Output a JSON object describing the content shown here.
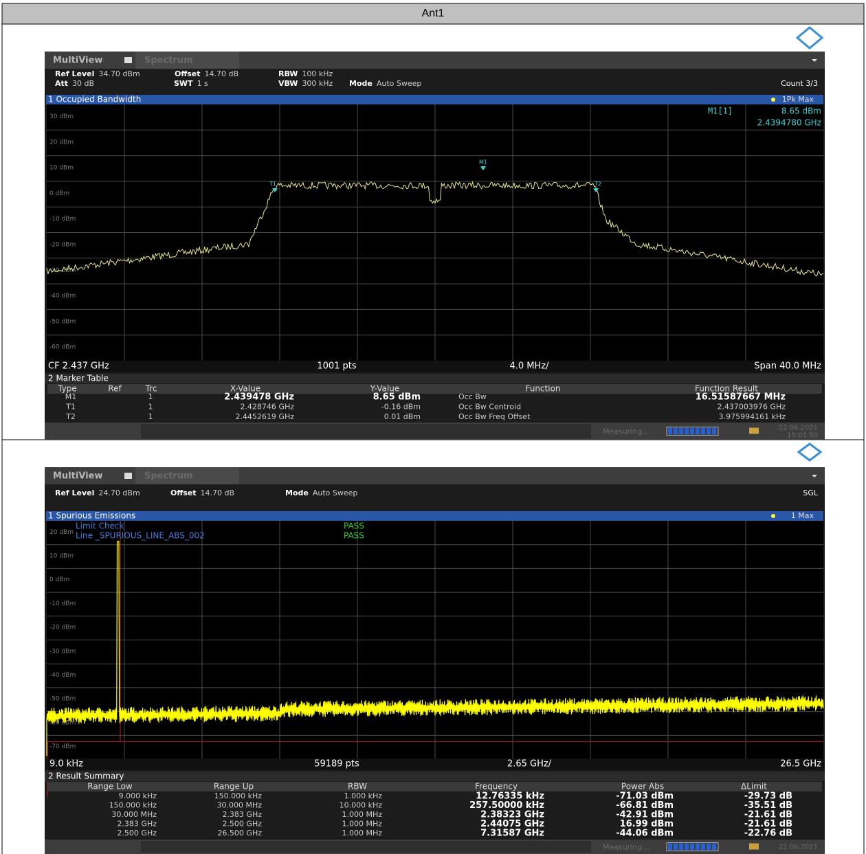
{
  "header": {
    "title": "Ant1"
  },
  "screens": [
    {
      "tabs": [
        "MultiView",
        "Spectrum"
      ],
      "settings": [
        [
          {
            "label": "Ref Level",
            "value": "34.70 dBm"
          },
          {
            "label": "Offset",
            "value": "14.70 dB"
          },
          {
            "label": "RBW",
            "value": "100 kHz"
          }
        ],
        [
          {
            "label": "Att",
            "value": "30 dB"
          },
          {
            "label": "SWT",
            "value": "1 s"
          },
          {
            "label": "VBW",
            "value": "300 kHz"
          },
          {
            "label": "Mode",
            "value": "Auto Sweep"
          }
        ]
      ],
      "status_right": "Count 3/3",
      "window_title": "1 Occupied Bandwidth",
      "trace_label": "1Pk Max",
      "marker_readout": {
        "name": "M1[1]",
        "level": "8.65 dBm",
        "freq": "2.4394780 GHz"
      },
      "y_labels": [
        "30 dBm",
        "20 dBm",
        "10 dBm",
        "0 dBm",
        "-10 dBm",
        "-20 dBm",
        "-30 dBm",
        "-40 dBm",
        "-50 dBm",
        "-60 dBm"
      ],
      "plot_markers": [
        "T1",
        "M1",
        "T2"
      ],
      "footer": [
        "CF 2.437 GHz",
        "1001 pts",
        "4.0 MHz/",
        "Span 40.0 MHz"
      ],
      "table_title": "2 Marker Table",
      "table": {
        "columns": [
          "Type",
          "Ref",
          "Trc",
          "X-Value",
          "Y-Value",
          "Function",
          "Function Result"
        ],
        "rows": [
          [
            "M1",
            null,
            "1",
            "2.439478 GHz",
            "8.65 dBm",
            "Occ Bw",
            "16.51587667 MHz"
          ],
          [
            "T1",
            null,
            "1",
            "2.428746 GHz",
            "-0.16 dBm",
            "Occ Bw Centroid",
            "2.437003976 GHz"
          ],
          [
            "T2",
            null,
            "1",
            "2.4452619 GHz",
            "0.01 dBm",
            "Occ Bw Freq Offset",
            "3.975994161 kHz"
          ]
        ]
      },
      "status": "Measuring...",
      "date": "22.06.2021",
      "time": "15:05:50"
    },
    {
      "tabs": [
        "MultiView",
        "Spectrum"
      ],
      "settings": [
        [
          {
            "label": "Ref Level",
            "value": "24.70 dBm"
          },
          {
            "label": "Offset",
            "value": "14.70 dB"
          },
          {
            "label": "Mode",
            "value": "Auto Sweep"
          }
        ]
      ],
      "status_right": "SGL",
      "window_title": "1 Spurious Emissions",
      "trace_label": "1 Max",
      "limit_check": [
        {
          "label": "Limit Check",
          "result": "PASS"
        },
        {
          "label": "Line _SPURIOUS_LINE_ABS_002",
          "result": "PASS"
        }
      ],
      "limit_line_label": "SPURIOUS_LINE_ABS_002",
      "y_labels": [
        "20 dBm",
        "10 dBm",
        "0 dBm",
        "-10 dBm",
        "-20 dBm",
        "-30 dBm",
        "-40 dBm",
        "-50 dBm",
        "-60 dBm",
        "-70 dBm"
      ],
      "footer": [
        "9.0 kHz",
        "59189 pts",
        "2.65 GHz/",
        "26.5 GHz"
      ],
      "table_title": "2 Result Summary",
      "table": {
        "columns": [
          "Range Low",
          "Range Up",
          "RBW",
          "Frequency",
          "Power Abs",
          "ΔLimit"
        ],
        "rows": [
          [
            "9.000 kHz",
            "150.000 kHz",
            "1.000 kHz",
            "12.76335 kHz",
            "-71.03 dBm",
            "-29.73 dB"
          ],
          [
            "150.000 kHz",
            "30.000 MHz",
            "10.000 kHz",
            "257.50000 kHz",
            "-66.81 dBm",
            "-35.51 dB"
          ],
          [
            "30.000 MHz",
            "2.383 GHz",
            "1.000 MHz",
            "2.38323 GHz",
            "-42.91 dBm",
            "-21.61 dB"
          ],
          [
            "2.383 GHz",
            "2.500 GHz",
            "1.000 MHz",
            "2.44075 GHz",
            "16.99 dBm",
            "-21.61 dB"
          ],
          [
            "2.500 GHz",
            "26.500 GHz",
            "1.000 MHz",
            "7.31587 GHz",
            "-44.06 dBm",
            "-22.76 dB"
          ]
        ]
      },
      "status": "Measuring...",
      "date": "22.06.2021"
    }
  ]
}
